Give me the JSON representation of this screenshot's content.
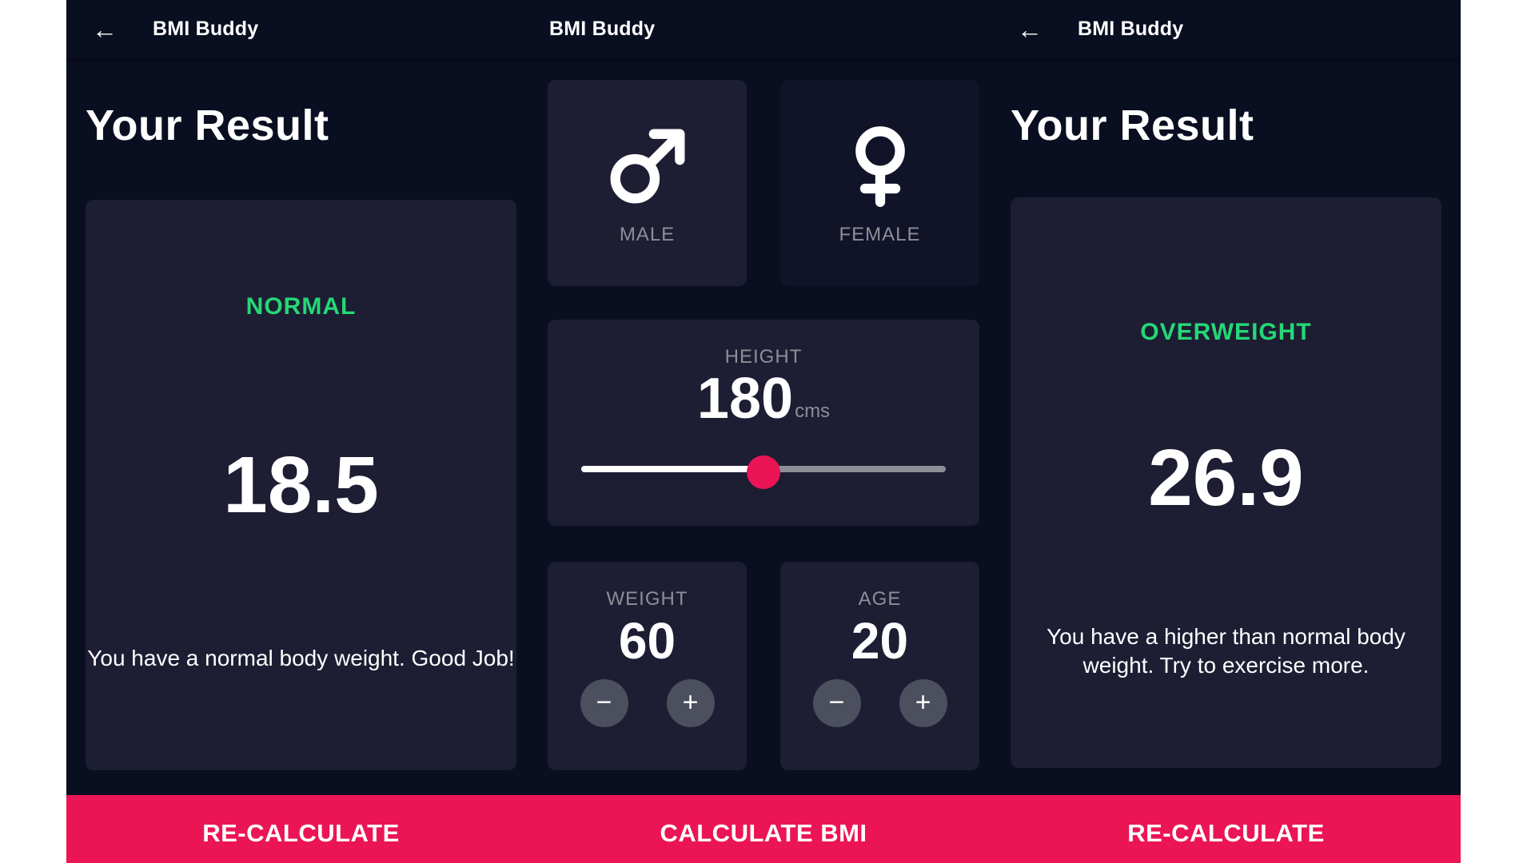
{
  "colors": {
    "scaffold_background": "#0A0E21",
    "card_active": "#1D1E33",
    "card_inactive": "#111328",
    "accent_pink": "#EB1555",
    "category_green": "#24D876",
    "label_gray": "#8D8E98",
    "stepper_button_gray": "#4C4F5E"
  },
  "panels": {
    "result_normal": {
      "back_icon": "←",
      "title": "BMI Buddy",
      "heading": "Your Result",
      "category": "NORMAL",
      "bmi_value": "18.5",
      "message": "You have a normal body weight. Good Job!",
      "action": "RE-CALCULATE"
    },
    "calculator": {
      "title": "BMI Buddy",
      "male_label": "MALE",
      "female_label": "FEMALE",
      "height_label": "HEIGHT",
      "height_value": "180",
      "height_unit": "cms",
      "height_slider_percent": 50,
      "weight_label": "WEIGHT",
      "weight_value": "60",
      "age_label": "AGE",
      "age_value": "20",
      "minus": "−",
      "plus": "+",
      "action": "CALCULATE BMI"
    },
    "result_overweight": {
      "back_icon": "←",
      "title": "BMI Buddy",
      "heading": "Your Result",
      "category": "OVERWEIGHT",
      "bmi_value": "26.9",
      "message": "You have a higher than normal body\nweight. Try to exercise more.",
      "action": "RE-CALCULATE"
    }
  }
}
